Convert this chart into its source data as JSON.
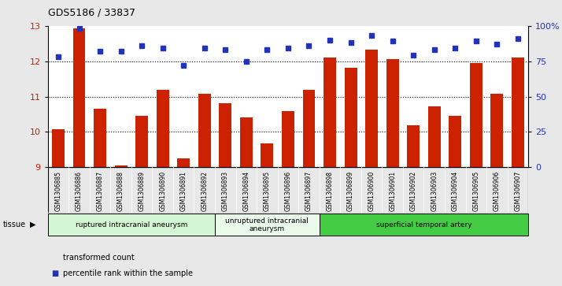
{
  "title": "GDS5186 / 33837",
  "samples": [
    "GSM1306885",
    "GSM1306886",
    "GSM1306887",
    "GSM1306888",
    "GSM1306889",
    "GSM1306890",
    "GSM1306891",
    "GSM1306892",
    "GSM1306893",
    "GSM1306894",
    "GSM1306895",
    "GSM1306896",
    "GSM1306897",
    "GSM1306898",
    "GSM1306899",
    "GSM1306900",
    "GSM1306901",
    "GSM1306902",
    "GSM1306903",
    "GSM1306904",
    "GSM1306905",
    "GSM1306906",
    "GSM1306907"
  ],
  "bar_values": [
    10.08,
    12.92,
    10.65,
    9.05,
    10.45,
    11.18,
    9.25,
    11.08,
    10.82,
    10.42,
    9.68,
    10.58,
    11.18,
    12.1,
    11.82,
    12.32,
    12.05,
    10.18,
    10.72,
    10.45,
    11.95,
    11.08,
    12.1
  ],
  "dot_values_pct": [
    78,
    98,
    82,
    82,
    86,
    84,
    72,
    84,
    83,
    75,
    83,
    84,
    86,
    90,
    88,
    93,
    89,
    79,
    83,
    84,
    89,
    87,
    91
  ],
  "ylim_left": [
    9,
    13
  ],
  "ylim_right": [
    0,
    100
  ],
  "yticks_left": [
    9,
    10,
    11,
    12,
    13
  ],
  "yticks_right": [
    0,
    25,
    50,
    75,
    100
  ],
  "ytick_labels_right": [
    "0",
    "25",
    "50",
    "75",
    "100%"
  ],
  "bar_color": "#cc2200",
  "dot_color": "#2233bb",
  "groups": [
    {
      "label": "ruptured intracranial aneurysm",
      "start": 0,
      "end": 8,
      "color": "#d4f5d4"
    },
    {
      "label": "unruptured intracranial\naneurysm",
      "start": 8,
      "end": 13,
      "color": "#eafaea"
    },
    {
      "label": "superficial temporal artery",
      "start": 13,
      "end": 23,
      "color": "#44cc44"
    }
  ],
  "tissue_label": "tissue",
  "legend_bar_label": "transformed count",
  "legend_dot_label": "percentile rank within the sample",
  "background_color": "#e8e8e8",
  "xtick_bg_color": "#d8d8d8",
  "plot_bg_color": "#ffffff"
}
